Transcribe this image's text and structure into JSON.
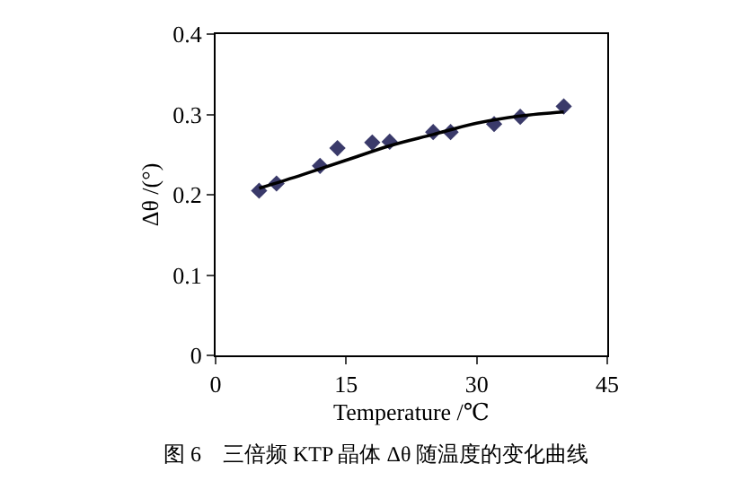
{
  "chart_data": {
    "type": "scatter",
    "xlabel": "Temperature /℃",
    "ylabel": "Δθ /(°)",
    "marker": "diamond",
    "xlim": [
      0,
      45
    ],
    "xticks": [
      0,
      15,
      30,
      45
    ],
    "ylim": [
      0,
      0.4
    ],
    "yticks": [
      0,
      0.1,
      0.2,
      0.3,
      0.4
    ],
    "grid": false,
    "x": [
      5,
      7,
      12,
      14,
      18,
      20,
      25,
      27,
      32,
      35,
      40
    ],
    "series": [
      {
        "color": "#3a3a6a",
        "values": [
          0.205,
          0.214,
          0.236,
          0.258,
          0.265,
          0.266,
          0.278,
          0.278,
          0.288,
          0.297,
          0.31
        ]
      },
      {
        "type": "line",
        "color": "#000000",
        "marker": "none",
        "x": [
          5,
          10,
          15,
          20,
          25,
          30,
          35,
          40
        ],
        "values": [
          0.208,
          0.225,
          0.243,
          0.261,
          0.275,
          0.289,
          0.298,
          0.303
        ]
      }
    ],
    "annotations": [
      "图 6　三倍频 KTP 晶体 Δθ 随温度的变化曲线"
    ]
  }
}
